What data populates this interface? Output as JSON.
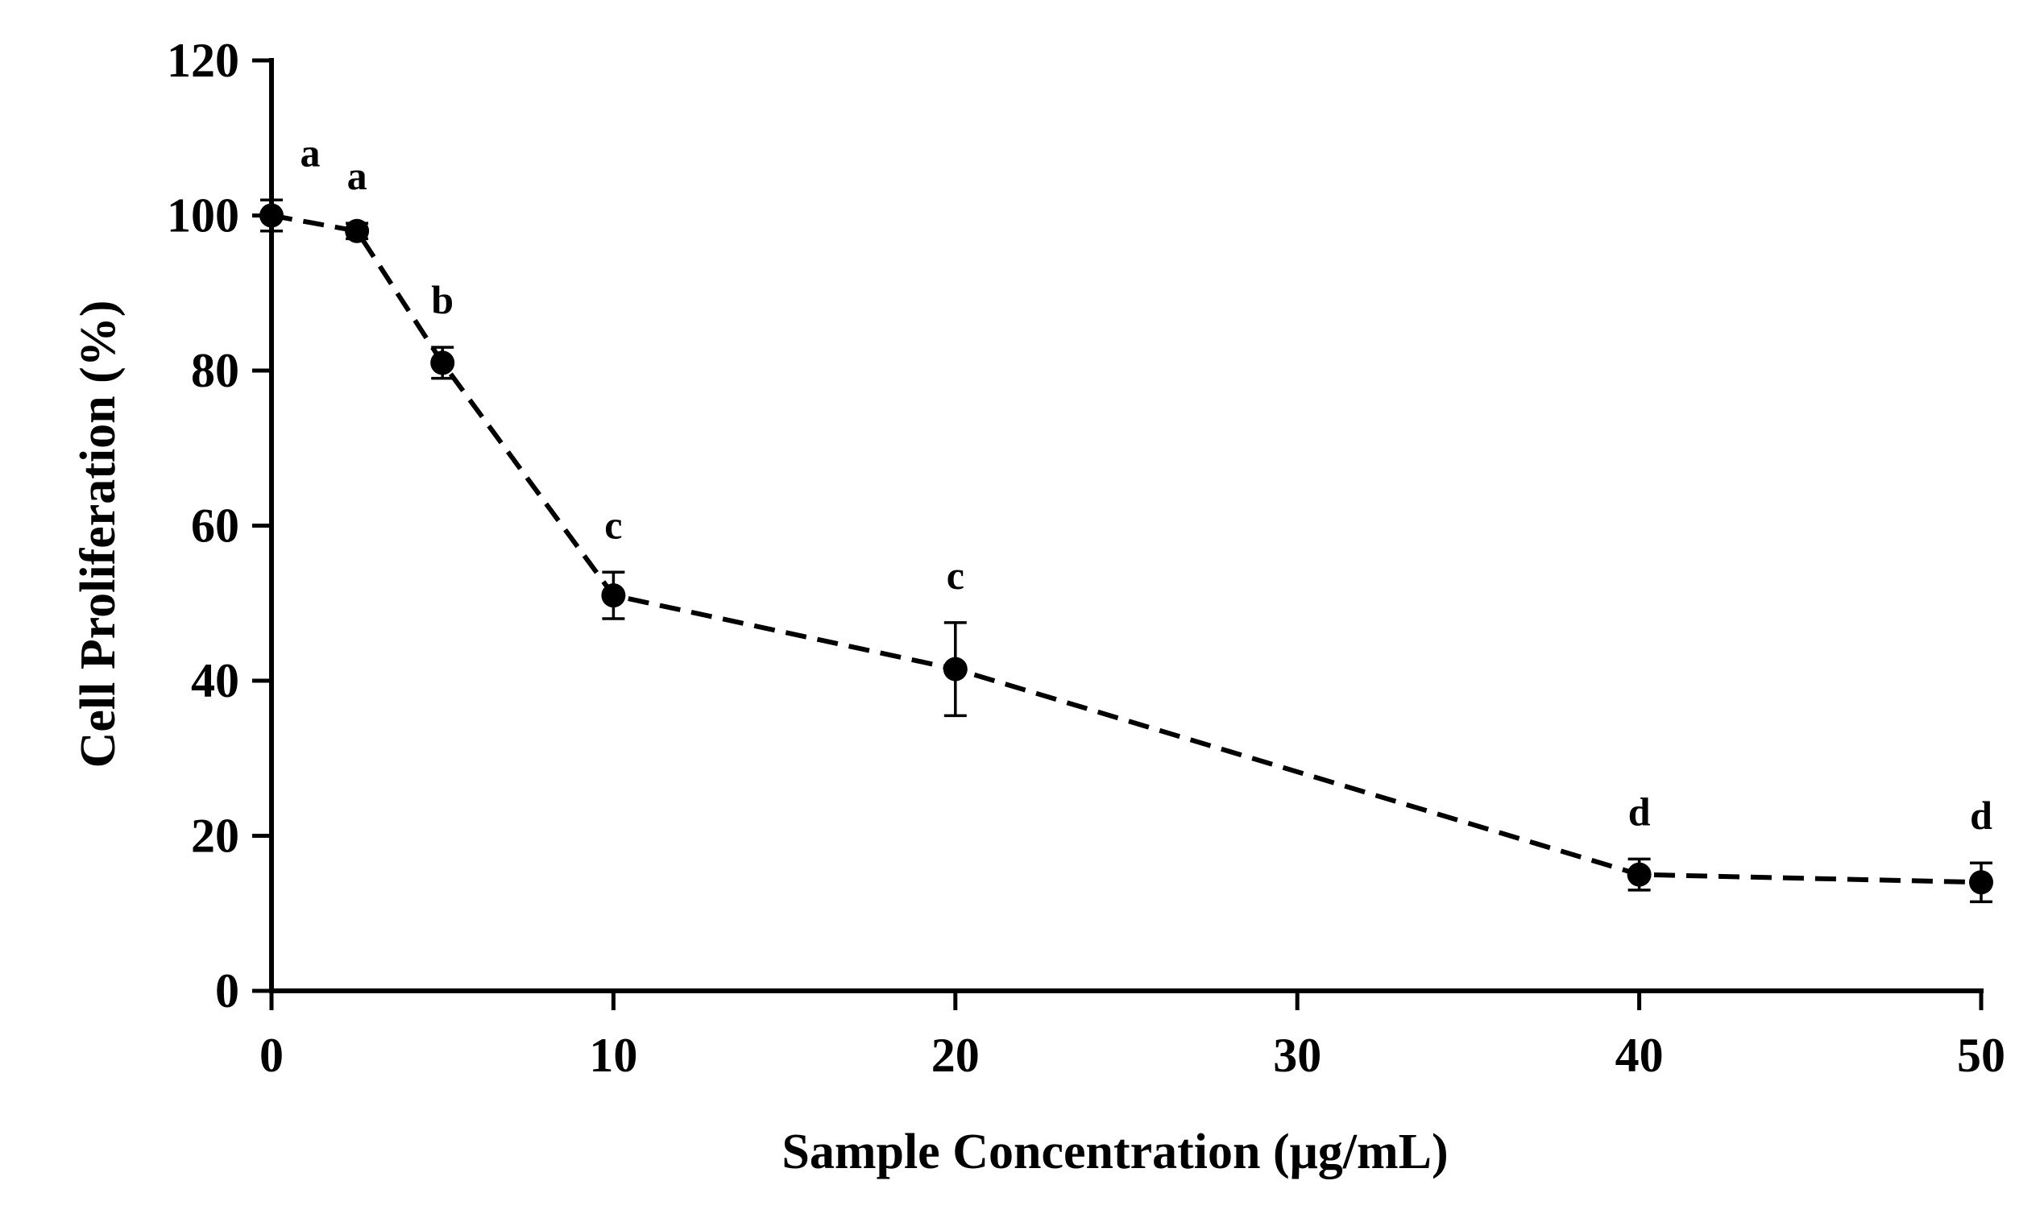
{
  "chart_data": {
    "type": "line",
    "title": "",
    "xlabel": "Sample Concentration (μg/mL)",
    "ylabel": "Cell Proliferation (%)",
    "xlim": [
      0,
      50
    ],
    "ylim": [
      0,
      120
    ],
    "x_ticks": [
      0,
      10,
      20,
      30,
      40,
      50
    ],
    "y_ticks": [
      0,
      20,
      40,
      60,
      80,
      100,
      120
    ],
    "grid": false,
    "legend": "none",
    "line_style": "dashed",
    "marker": "circle",
    "colors": {
      "line": "#000000",
      "marker": "#000000"
    },
    "series": [
      {
        "name": "Cell Proliferation",
        "x": [
          0,
          2.5,
          5,
          10,
          20,
          40,
          50
        ],
        "y": [
          100,
          98,
          81,
          51,
          41.5,
          15,
          14
        ],
        "error": [
          2,
          1,
          2,
          3,
          6,
          2,
          2.5
        ],
        "labels": [
          "a",
          "a",
          "b",
          "c",
          "c",
          "d",
          "d"
        ]
      }
    ]
  }
}
